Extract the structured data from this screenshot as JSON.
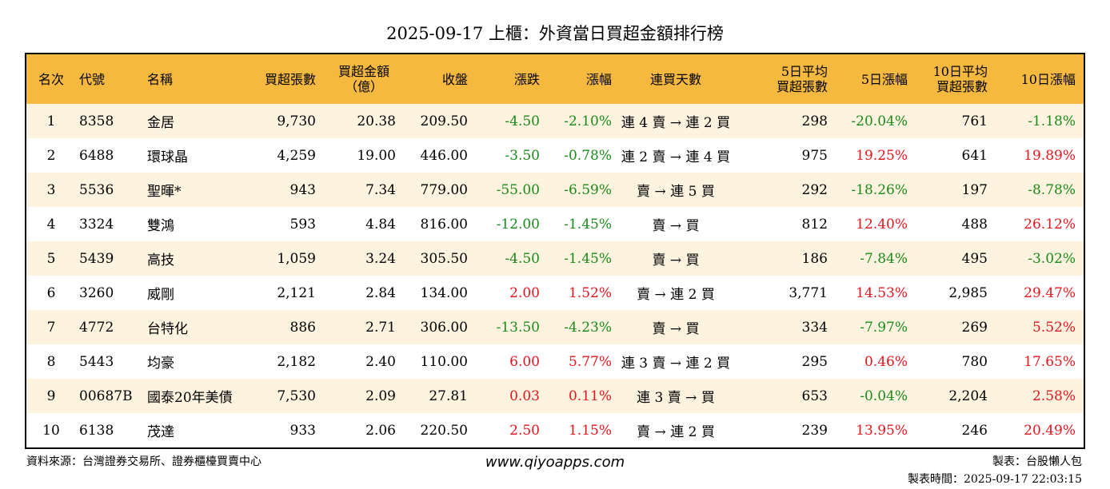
{
  "title": "2025-09-17 上櫃：外資當日買超金額排行榜",
  "headers": {
    "rank": "名次",
    "code": "代號",
    "name": "名稱",
    "shares": "買超張數",
    "amount_l1": "買超金額",
    "amount_l2": "（億）",
    "close": "收盤",
    "change": "漲跌",
    "pct": "漲幅",
    "days": "連買天數",
    "avg5_l1": "5日平均",
    "avg5_l2": "買超張數",
    "pct5": "5日漲幅",
    "avg10_l1": "10日平均",
    "avg10_l2": "買超張數",
    "pct10": "10日漲幅"
  },
  "rows": [
    {
      "rank": "1",
      "code": "8358",
      "name": "金居",
      "shares": "9,730",
      "amount": "20.38",
      "close": "209.50",
      "change": "-4.50",
      "pct": "-2.10%",
      "days": "連 4 賣 → 連 2 買",
      "avg5": "298",
      "pct5": "-20.04%",
      "avg10": "761",
      "pct10": "-1.18%"
    },
    {
      "rank": "2",
      "code": "6488",
      "name": "環球晶",
      "shares": "4,259",
      "amount": "19.00",
      "close": "446.00",
      "change": "-3.50",
      "pct": "-0.78%",
      "days": "連 2 賣 → 連 4 買",
      "avg5": "975",
      "pct5": "19.25%",
      "avg10": "641",
      "pct10": "19.89%"
    },
    {
      "rank": "3",
      "code": "5536",
      "name": "聖暉*",
      "shares": "943",
      "amount": "7.34",
      "close": "779.00",
      "change": "-55.00",
      "pct": "-6.59%",
      "days": "賣 → 連 5 買",
      "avg5": "292",
      "pct5": "-18.26%",
      "avg10": "197",
      "pct10": "-8.78%"
    },
    {
      "rank": "4",
      "code": "3324",
      "name": "雙鴻",
      "shares": "593",
      "amount": "4.84",
      "close": "816.00",
      "change": "-12.00",
      "pct": "-1.45%",
      "days": "賣 → 買",
      "avg5": "812",
      "pct5": "12.40%",
      "avg10": "488",
      "pct10": "26.12%"
    },
    {
      "rank": "5",
      "code": "5439",
      "name": "高技",
      "shares": "1,059",
      "amount": "3.24",
      "close": "305.50",
      "change": "-4.50",
      "pct": "-1.45%",
      "days": "賣 → 買",
      "avg5": "186",
      "pct5": "-7.84%",
      "avg10": "495",
      "pct10": "-3.02%"
    },
    {
      "rank": "6",
      "code": "3260",
      "name": "威剛",
      "shares": "2,121",
      "amount": "2.84",
      "close": "134.00",
      "change": "2.00",
      "pct": "1.52%",
      "days": "賣 → 連 2 買",
      "avg5": "3,771",
      "pct5": "14.53%",
      "avg10": "2,985",
      "pct10": "29.47%"
    },
    {
      "rank": "7",
      "code": "4772",
      "name": "台特化",
      "shares": "886",
      "amount": "2.71",
      "close": "306.00",
      "change": "-13.50",
      "pct": "-4.23%",
      "days": "賣 → 買",
      "avg5": "334",
      "pct5": "-7.97%",
      "avg10": "269",
      "pct10": "5.52%"
    },
    {
      "rank": "8",
      "code": "5443",
      "name": "均豪",
      "shares": "2,182",
      "amount": "2.40",
      "close": "110.00",
      "change": "6.00",
      "pct": "5.77%",
      "days": "連 3 賣 → 連 2 買",
      "avg5": "295",
      "pct5": "0.46%",
      "avg10": "780",
      "pct10": "17.65%"
    },
    {
      "rank": "9",
      "code": "00687B",
      "name": "國泰20年美債",
      "shares": "7,530",
      "amount": "2.09",
      "close": "27.81",
      "change": "0.03",
      "pct": "0.11%",
      "days": "連 3 賣 → 買",
      "avg5": "653",
      "pct5": "-0.04%",
      "avg10": "2,204",
      "pct10": "2.58%"
    },
    {
      "rank": "10",
      "code": "6138",
      "name": "茂達",
      "shares": "933",
      "amount": "2.06",
      "close": "220.50",
      "change": "2.50",
      "pct": "1.15%",
      "days": "賣 → 連 2 買",
      "avg5": "239",
      "pct5": "13.95%",
      "avg10": "246",
      "pct10": "20.49%"
    }
  ],
  "footer": {
    "source": "資料來源：台灣證券交易所、證券櫃檯買賣中心",
    "website": "www.qiyoapps.com",
    "author": "製表：台股懶人包",
    "made_time": "製表時間：2025-09-17 22:03:15"
  },
  "colors": {
    "header_bg": "#f5b93f",
    "stripe_bg": "#fdf3df",
    "positive": "#e8141d",
    "negative": "#1a8a1a"
  }
}
